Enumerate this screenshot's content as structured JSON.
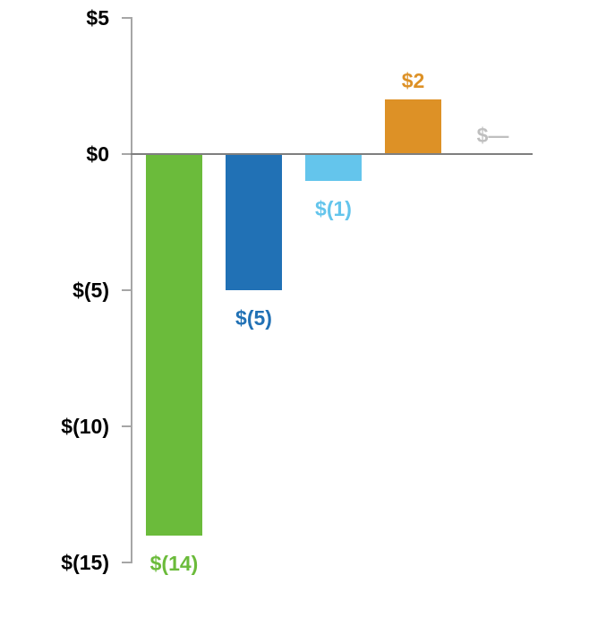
{
  "chart_data": {
    "type": "bar",
    "values": [
      -14,
      -5,
      -1,
      2,
      0
    ],
    "bar_labels": [
      "$(14)",
      "$(5)",
      "$(1)",
      "$2",
      "$—"
    ],
    "bar_colors": [
      "#6bbb3b",
      "#2171b5",
      "#64c5ec",
      "#dd9126",
      null
    ],
    "label_colors": [
      "#6bbb3b",
      "#2171b5",
      "#64c5ec",
      "#dd9126",
      "#bfbfbf"
    ],
    "yticks": [
      {
        "value": 5,
        "label": "$5"
      },
      {
        "value": 0,
        "label": "$0"
      },
      {
        "value": -5,
        "label": "$(5)"
      },
      {
        "value": -10,
        "label": "$(10)"
      },
      {
        "value": -15,
        "label": "$(15)"
      }
    ],
    "ylim": [
      -15,
      5
    ],
    "grid": false,
    "legend": null,
    "axis_color": "#a6a6a6",
    "zero_line_color": "#7f7f7f",
    "tick_label_color": "#000000",
    "background_color": "#ffffff"
  }
}
